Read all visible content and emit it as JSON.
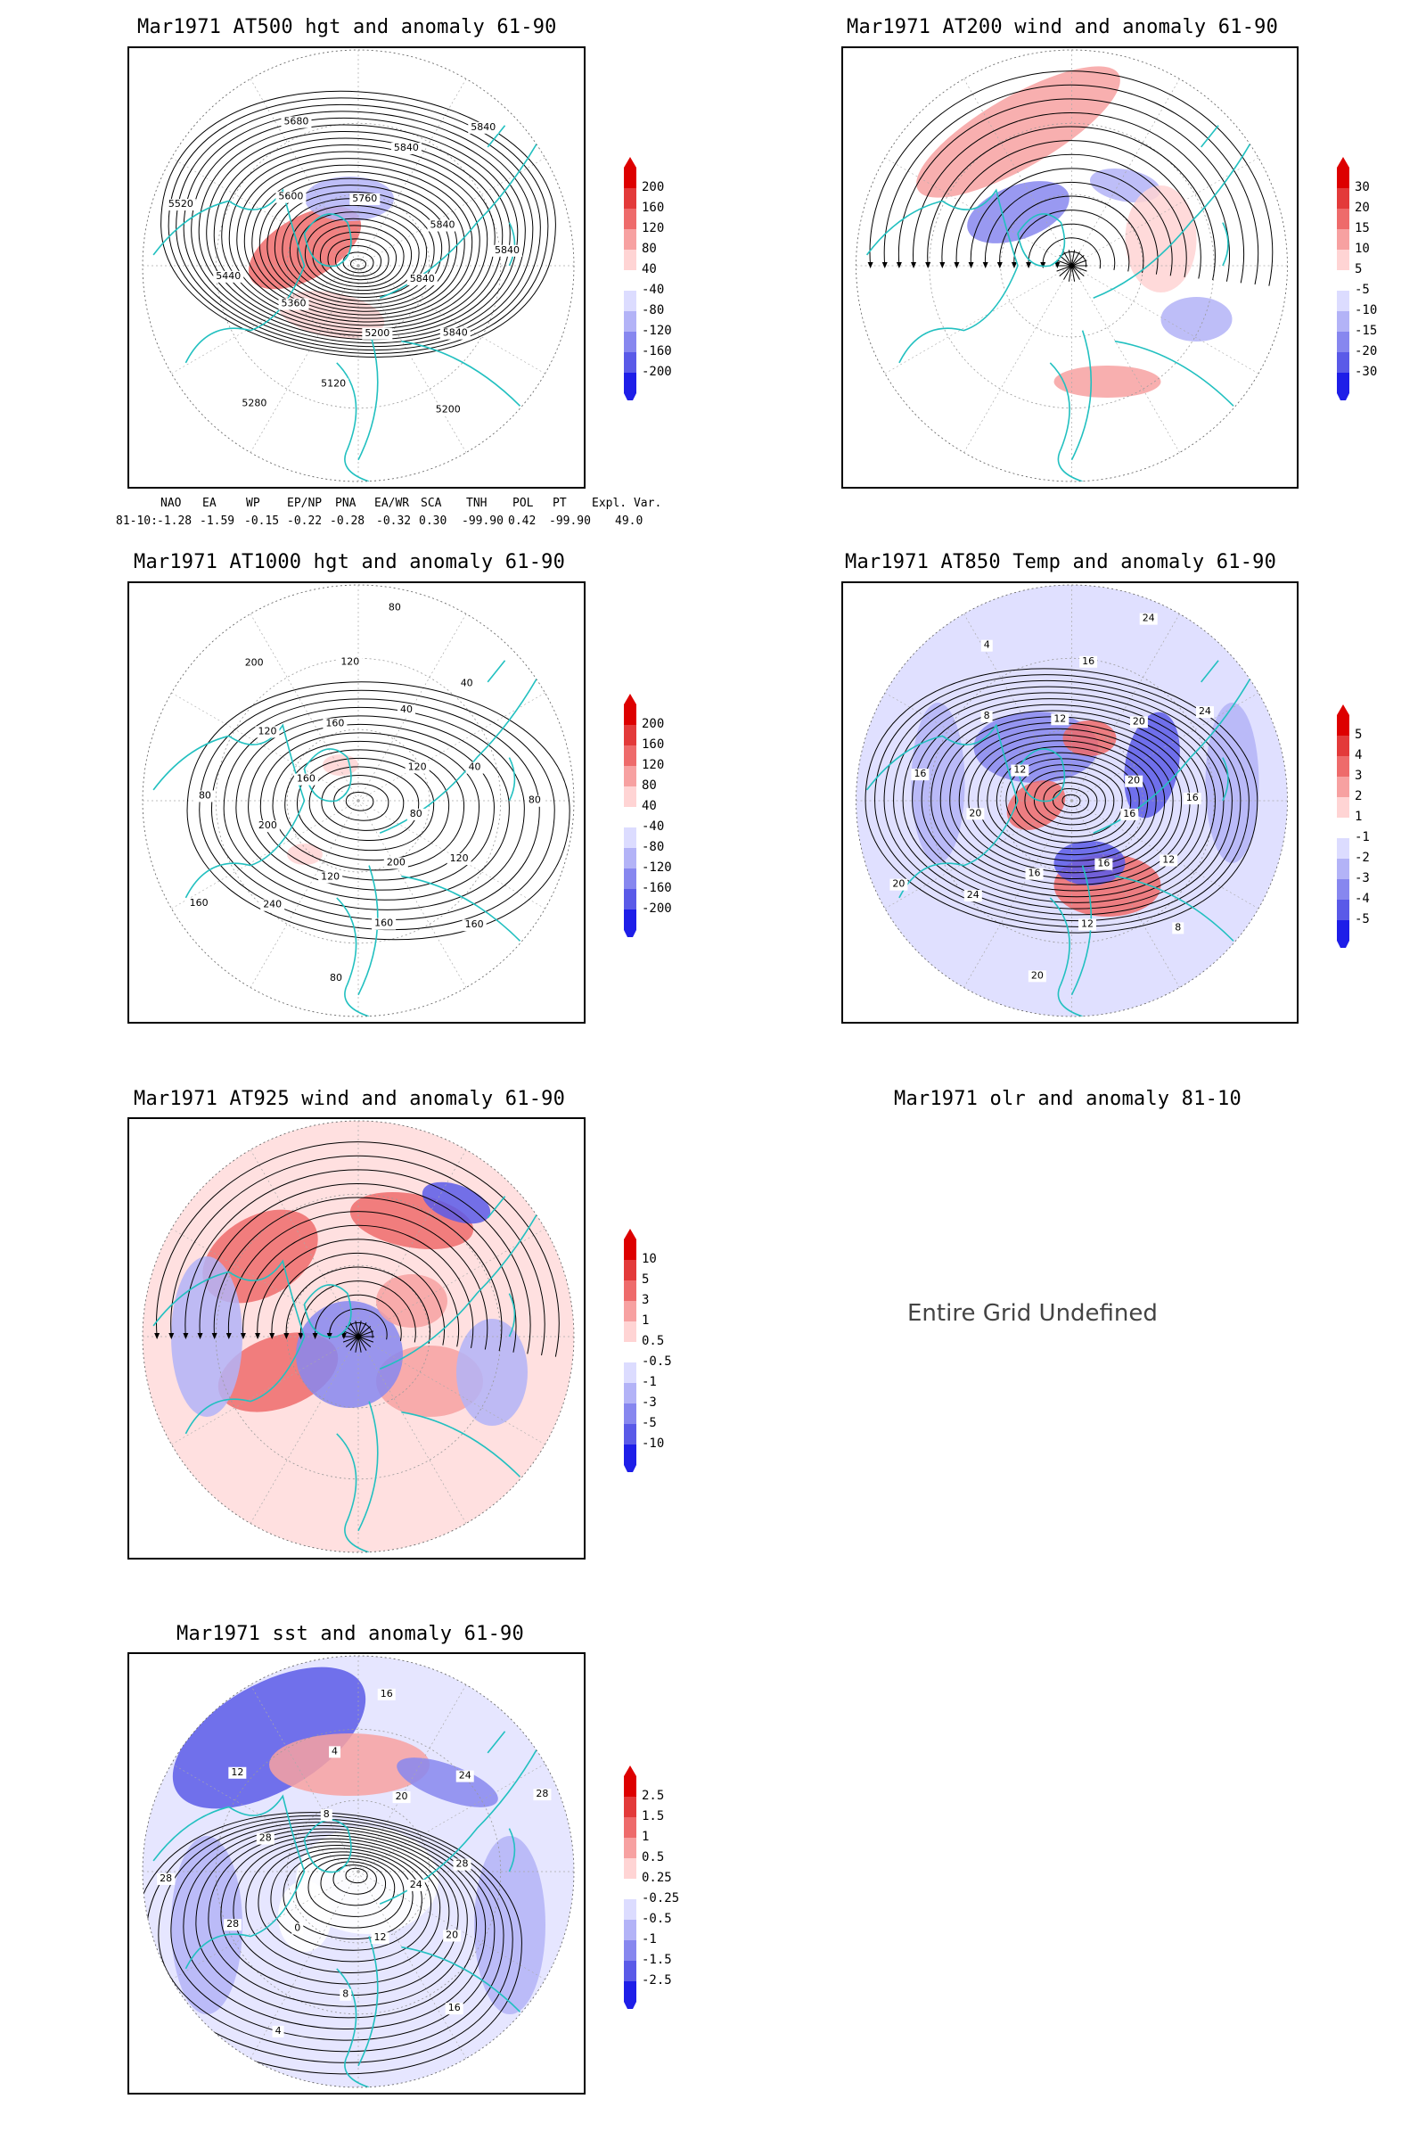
{
  "panels": [
    {
      "title": "Mar1971 AT500 hgt and anomaly 61-90",
      "contour_labels": [
        "5840",
        "5840",
        "5200",
        "5200",
        "5120",
        "5280",
        "5360",
        "5440",
        "5520",
        "5600",
        "5680",
        "5760",
        "5840",
        "5840",
        "5840",
        "5840"
      ],
      "colorbar": {
        "labels": [
          "200",
          "160",
          "120",
          "80",
          "40",
          "-40",
          "-80",
          "-120",
          "-160",
          "-200"
        ]
      }
    },
    {
      "title": "Mar1971 AT200 wind and anomaly 61-90",
      "colorbar": {
        "labels": [
          "30",
          "20",
          "15",
          "10",
          "5",
          "-5",
          "-10",
          "-15",
          "-20",
          "-30"
        ]
      }
    },
    {
      "title": "Mar1971 AT1000 hgt and anomaly 61-90",
      "contour_labels": [
        "80",
        "120",
        "160",
        "200",
        "160",
        "80",
        "120",
        "240",
        "160",
        "200",
        "80",
        "160",
        "120",
        "200",
        "160",
        "120",
        "80",
        "40",
        "40",
        "120",
        "40",
        "80"
      ],
      "colorbar": {
        "labels": [
          "200",
          "160",
          "120",
          "80",
          "40",
          "-40",
          "-80",
          "-120",
          "-160",
          "-200"
        ]
      }
    },
    {
      "title": "Mar1971 AT850 Temp and anomaly 61-90",
      "contour_labels": [
        "16",
        "12",
        "8",
        "16",
        "12",
        "20",
        "16",
        "24",
        "20",
        "20",
        "16",
        "12",
        "8",
        "4",
        "12",
        "16",
        "24",
        "20",
        "24",
        "20",
        "16"
      ],
      "colorbar": {
        "labels": [
          "5",
          "4",
          "3",
          "2",
          "1",
          "-1",
          "-2",
          "-3",
          "-4",
          "-5"
        ]
      }
    },
    {
      "title": "Mar1971 AT925 wind and anomaly 61-90",
      "colorbar": {
        "labels": [
          "10",
          "5",
          "3",
          "1",
          "0.5",
          "-0.5",
          "-1",
          "-3",
          "-5",
          "-10"
        ]
      }
    },
    {
      "title": "Mar1971 olr and anomaly 81-10",
      "undefined_text": "Entire Grid Undefined"
    },
    {
      "title": "Mar1971 sst and anomaly 61-90",
      "contour_labels": [
        "24",
        "20",
        "16",
        "12",
        "8",
        "4",
        "0",
        "28",
        "28",
        "28",
        "12",
        "8",
        "4",
        "16",
        "20",
        "24",
        "28",
        "28"
      ],
      "colorbar": {
        "labels": [
          "2.5",
          "1.5",
          "1",
          "0.5",
          "0.25",
          "-0.25",
          "-0.5",
          "-1",
          "-1.5",
          "-2.5"
        ]
      }
    }
  ],
  "teleconnections": {
    "headers": [
      "NAO",
      "EA",
      "WP",
      "EP/NP",
      "PNA",
      "EA/WR",
      "SCA",
      "TNH",
      "POL",
      "PT",
      "Expl. Var."
    ],
    "row_label": "81-10:",
    "values": [
      "-1.28",
      "-1.59",
      "-0.15",
      "-0.22",
      "-0.28",
      "-0.32",
      "0.30",
      "-99.90",
      "0.42",
      "-99.90",
      "49.0"
    ]
  },
  "colors": {
    "coast": "#22c0c0",
    "pos_ramp": [
      "#ffd4d4",
      "#f7a1a1",
      "#ee6b6b",
      "#e33a3a",
      "#dd0000"
    ],
    "neg_ramp": [
      "#dcdcff",
      "#b3b3f7",
      "#8787ef",
      "#5a5ae8",
      "#1e1ee8"
    ]
  }
}
